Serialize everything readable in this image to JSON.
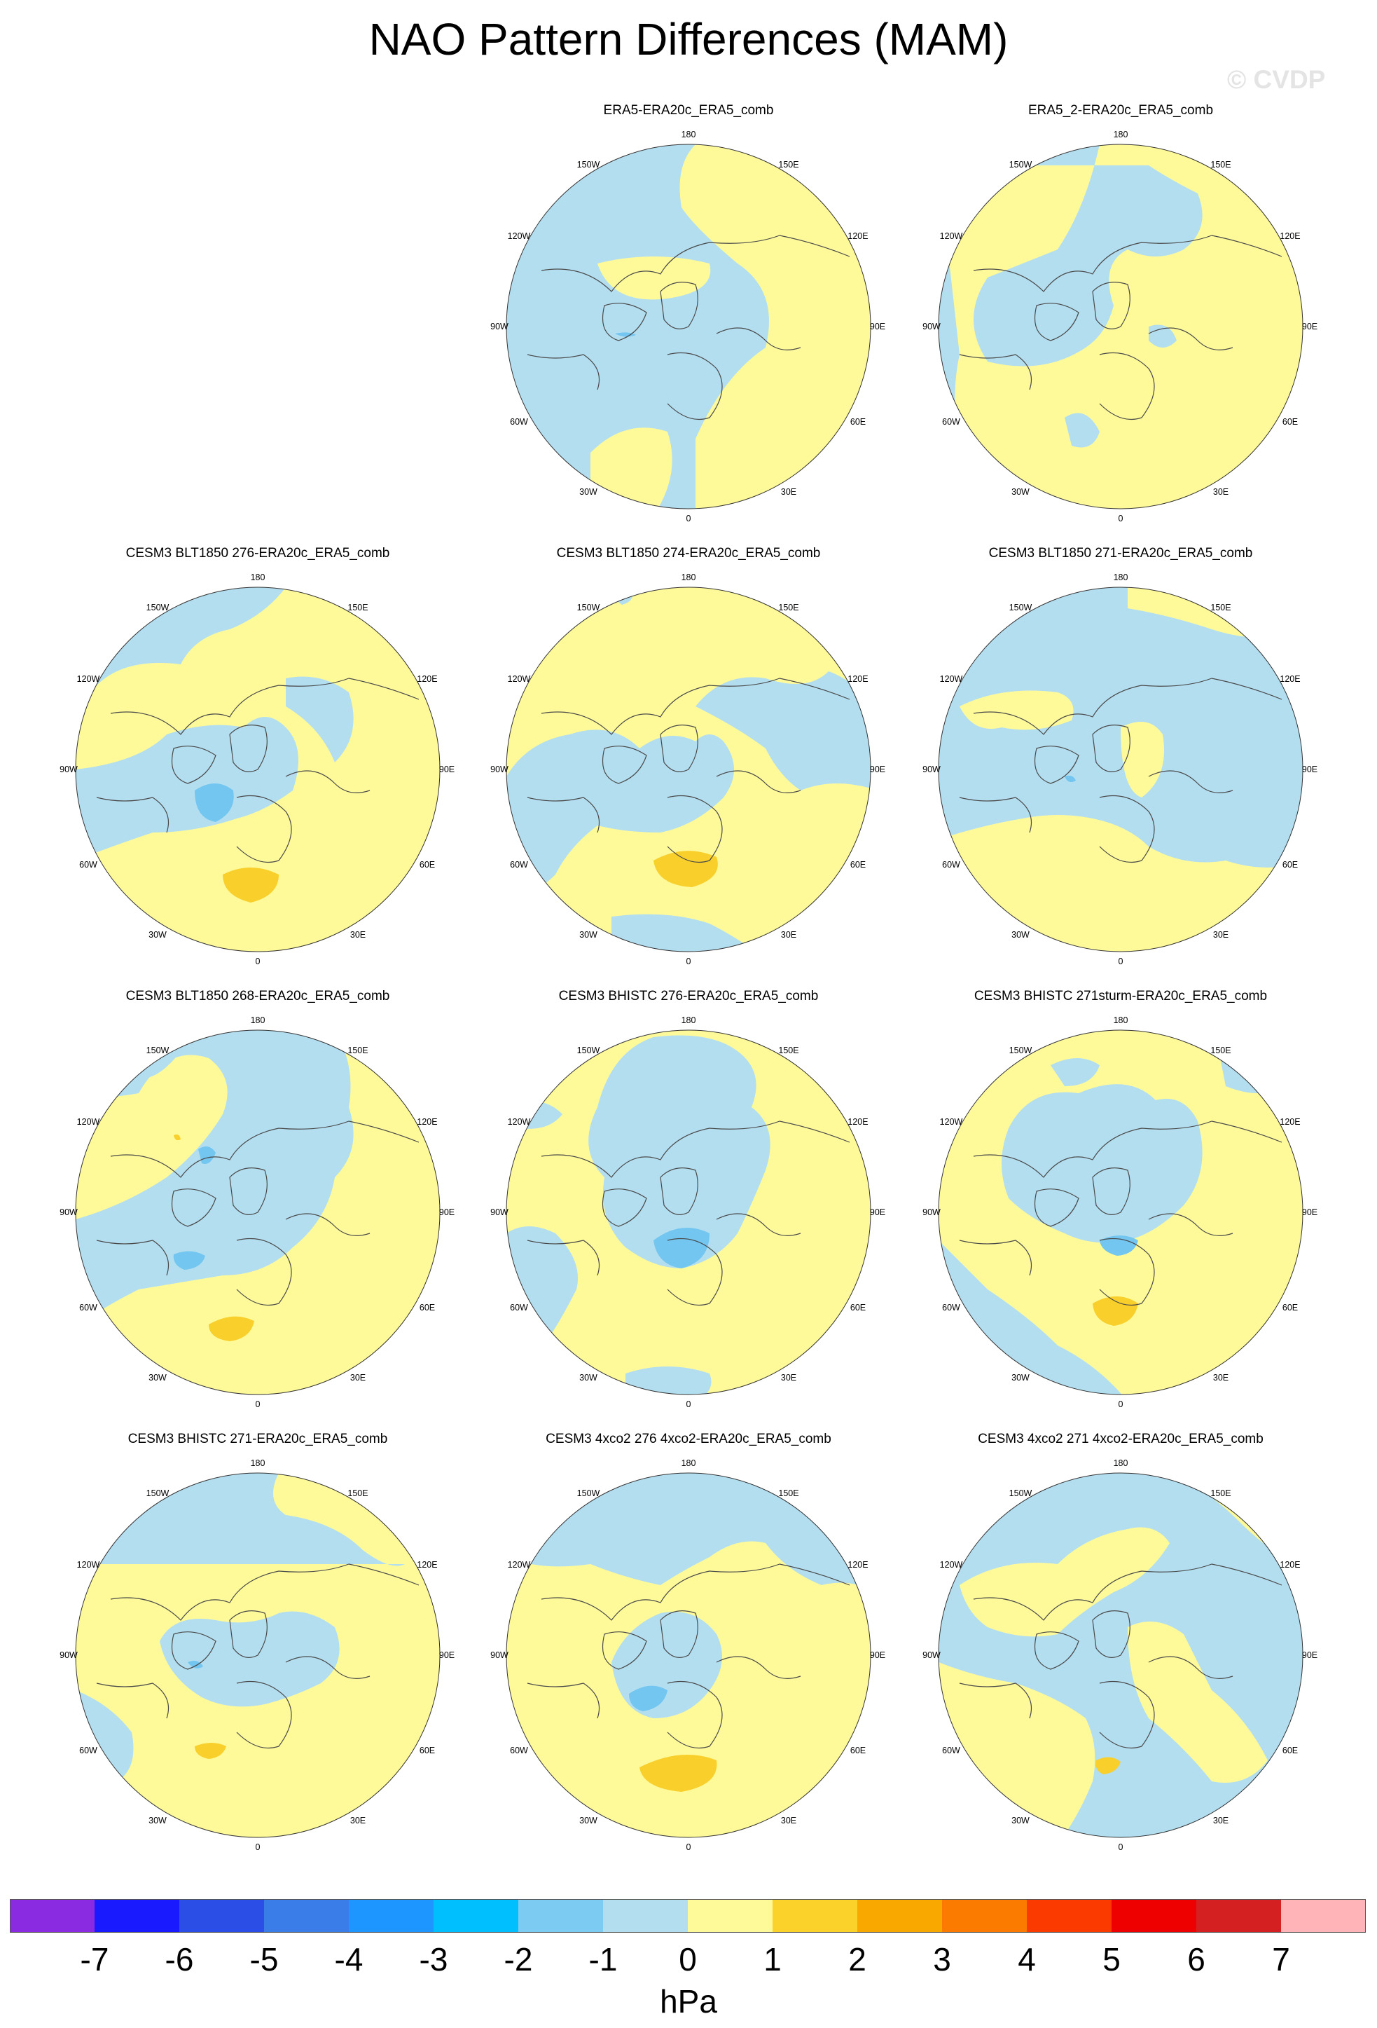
{
  "title": "NAO Pattern Differences (MAM)",
  "watermark": "© CVDP",
  "lon_labels": {
    "top": "180",
    "tl": "150W",
    "tr": "150E",
    "ul": "120W",
    "ur": "120E",
    "l": "90W",
    "r": "90E",
    "ll": "60W",
    "lr": "60E",
    "bl": "30W",
    "br": "30E",
    "bottom": "0"
  },
  "colors": {
    "neg1": "#b3def0",
    "pos1": "#fffa99",
    "neg2": "#72c6f0",
    "neg3": "#5aa7e8",
    "pos2": "#f8cf2b",
    "pos3": "#f5b018",
    "coast": "#4a4a4a"
  },
  "panels": [
    {
      "title": "ERA5-ERA20c_ERA5_comb"
    },
    {
      "title": "ERA5_2-ERA20c_ERA5_comb"
    },
    {
      "title": "CESM3 BLT1850 276-ERA20c_ERA5_comb"
    },
    {
      "title": "CESM3 BLT1850 274-ERA20c_ERA5_comb"
    },
    {
      "title": "CESM3 BLT1850 271-ERA20c_ERA5_comb"
    },
    {
      "title": "CESM3 BLT1850 268-ERA20c_ERA5_comb"
    },
    {
      "title": "CESM3 BHISTC 276-ERA20c_ERA5_comb"
    },
    {
      "title": "CESM3 BHISTC 271sturm-ERA20c_ERA5_comb"
    },
    {
      "title": "CESM3 BHISTC 271-ERA20c_ERA5_comb"
    },
    {
      "title": "CESM3 4xco2 276 4xco2-ERA20c_ERA5_comb"
    },
    {
      "title": "CESM3 4xco2 271 4xco2-ERA20c_ERA5_comb"
    }
  ],
  "colorbar": {
    "colors": [
      "#8a2be2",
      "#1a1aff",
      "#2b4ee6",
      "#3a7ce8",
      "#1e96ff",
      "#00bfff",
      "#7ccbf3",
      "#b3def0",
      "#fffa99",
      "#fad22a",
      "#f9a800",
      "#fb7a00",
      "#fb3a00",
      "#ee0000",
      "#d42020",
      "#ffb4b8"
    ],
    "labels": [
      "-7",
      "-6",
      "-5",
      "-4",
      "-3",
      "-2",
      "-1",
      "0",
      "1",
      "2",
      "3",
      "4",
      "5",
      "6",
      "7"
    ],
    "unit": "hPa"
  }
}
